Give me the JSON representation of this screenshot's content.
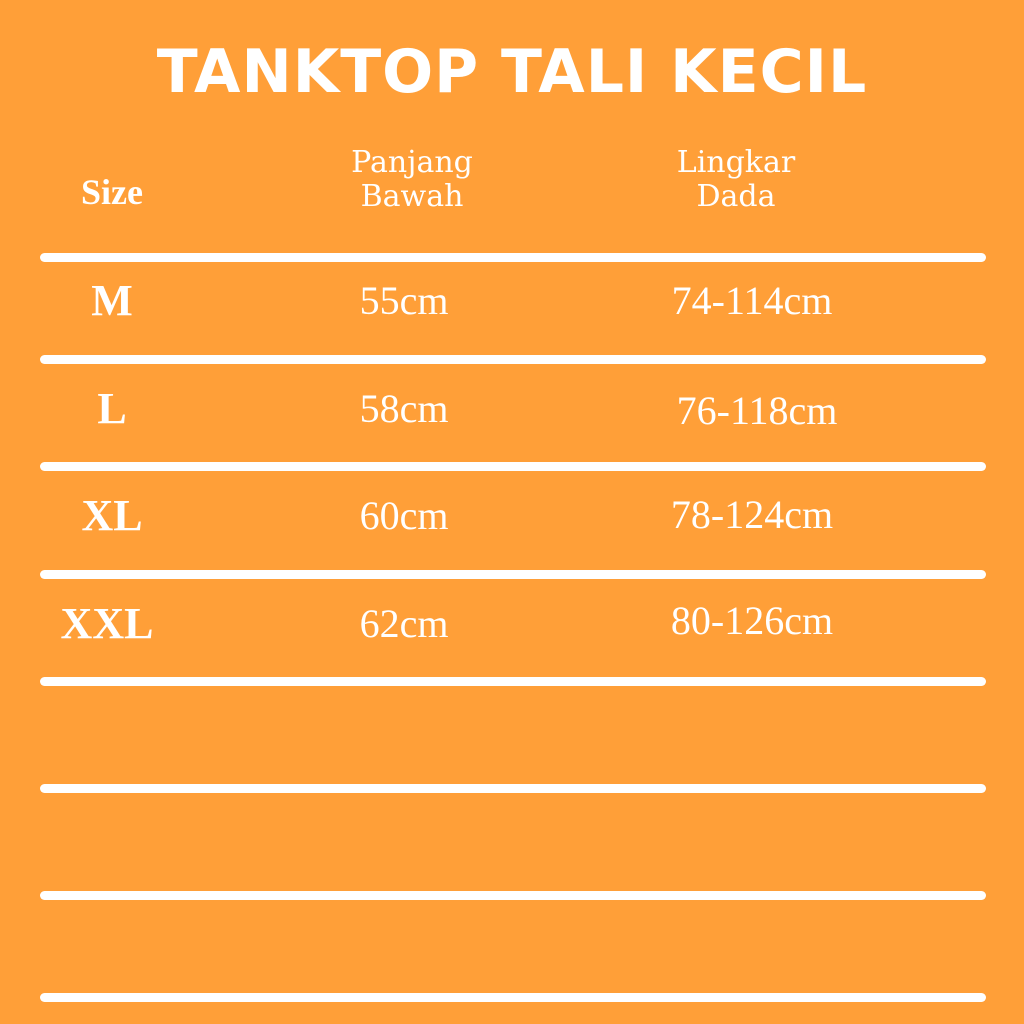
{
  "title": "TANKTOP TALI KECIL",
  "headers": {
    "size": "Size",
    "panjang": [
      "Panjang",
      "Bawah"
    ],
    "lingkar": [
      "Lingkar",
      "Dada"
    ]
  },
  "rows": [
    {
      "size": "M",
      "panjang": "55cm",
      "lingkar": "74-114cm"
    },
    {
      "size": "L",
      "panjang": "58cm",
      "lingkar": "76-118cm"
    },
    {
      "size": "XL",
      "panjang": "60cm",
      "lingkar": "78-124cm"
    },
    {
      "size": "XXL",
      "panjang": "62cm",
      "lingkar": "80-126cm"
    }
  ],
  "colors": {
    "background": "#FF9F38",
    "foreground": "#FFFFFF"
  }
}
